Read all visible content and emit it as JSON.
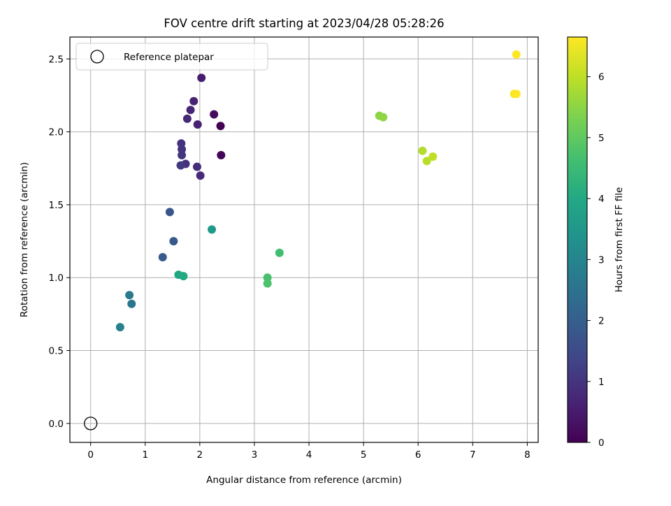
{
  "chart_data": {
    "type": "scatter",
    "title": "FOV centre drift starting at 2023/04/28 05:28:26",
    "xlabel": "Angular distance from reference (arcmin)",
    "ylabel": "Rotation from reference (arcmin)",
    "xlim": [
      -0.38,
      8.2
    ],
    "ylim": [
      -0.13,
      2.65
    ],
    "x_ticks": [
      "0",
      "1",
      "2",
      "3",
      "4",
      "5",
      "6",
      "7",
      "8"
    ],
    "y_ticks": [
      "0.0",
      "0.5",
      "1.0",
      "1.5",
      "2.0",
      "2.5"
    ],
    "grid": true,
    "legend": {
      "position": "top-left",
      "entries": [
        "Reference platepar"
      ]
    },
    "reference_point": {
      "label": "Reference platepar",
      "x": 0.0,
      "y": 0.0
    },
    "colorbar": {
      "label": "Hours from first FF file",
      "colormap": "viridis",
      "range": [
        0,
        6.65
      ],
      "ticks": [
        "0",
        "1",
        "2",
        "3",
        "4",
        "5",
        "6"
      ]
    },
    "series": [
      {
        "points": [
          {
            "x": 2.38,
            "y": 2.04,
            "c": 0.0
          },
          {
            "x": 2.39,
            "y": 1.84,
            "c": 0.1
          },
          {
            "x": 2.26,
            "y": 2.12,
            "c": 0.2
          },
          {
            "x": 2.03,
            "y": 2.37,
            "c": 0.55
          },
          {
            "x": 1.96,
            "y": 2.05,
            "c": 0.6
          },
          {
            "x": 1.89,
            "y": 2.21,
            "c": 0.65
          },
          {
            "x": 1.83,
            "y": 2.15,
            "c": 0.7
          },
          {
            "x": 1.77,
            "y": 2.09,
            "c": 0.75
          },
          {
            "x": 2.01,
            "y": 1.7,
            "c": 0.8
          },
          {
            "x": 1.95,
            "y": 1.76,
            "c": 0.85
          },
          {
            "x": 1.74,
            "y": 1.78,
            "c": 0.9
          },
          {
            "x": 1.66,
            "y": 1.92,
            "c": 0.95
          },
          {
            "x": 1.67,
            "y": 1.88,
            "c": 1.0
          },
          {
            "x": 1.67,
            "y": 1.84,
            "c": 1.05
          },
          {
            "x": 1.65,
            "y": 1.77,
            "c": 1.1
          },
          {
            "x": 1.45,
            "y": 1.45,
            "c": 1.8
          },
          {
            "x": 1.52,
            "y": 1.25,
            "c": 1.85
          },
          {
            "x": 1.32,
            "y": 1.14,
            "c": 1.9
          },
          {
            "x": 0.75,
            "y": 0.82,
            "c": 2.6
          },
          {
            "x": 0.71,
            "y": 0.88,
            "c": 2.7
          },
          {
            "x": 0.54,
            "y": 0.66,
            "c": 2.9
          },
          {
            "x": 2.22,
            "y": 1.33,
            "c": 3.6
          },
          {
            "x": 1.61,
            "y": 1.02,
            "c": 3.9
          },
          {
            "x": 1.7,
            "y": 1.01,
            "c": 4.0
          },
          {
            "x": 3.46,
            "y": 1.17,
            "c": 4.6
          },
          {
            "x": 3.24,
            "y": 1.0,
            "c": 4.7
          },
          {
            "x": 3.24,
            "y": 0.96,
            "c": 4.75
          },
          {
            "x": 5.29,
            "y": 2.11,
            "c": 5.5
          },
          {
            "x": 5.36,
            "y": 2.1,
            "c": 5.55
          },
          {
            "x": 6.08,
            "y": 1.87,
            "c": 5.9
          },
          {
            "x": 6.16,
            "y": 1.8,
            "c": 5.95
          },
          {
            "x": 6.27,
            "y": 1.83,
            "c": 6.0
          },
          {
            "x": 7.8,
            "y": 2.53,
            "c": 6.65
          },
          {
            "x": 7.76,
            "y": 2.26,
            "c": 6.6
          },
          {
            "x": 7.8,
            "y": 2.26,
            "c": 6.65
          }
        ]
      }
    ]
  }
}
